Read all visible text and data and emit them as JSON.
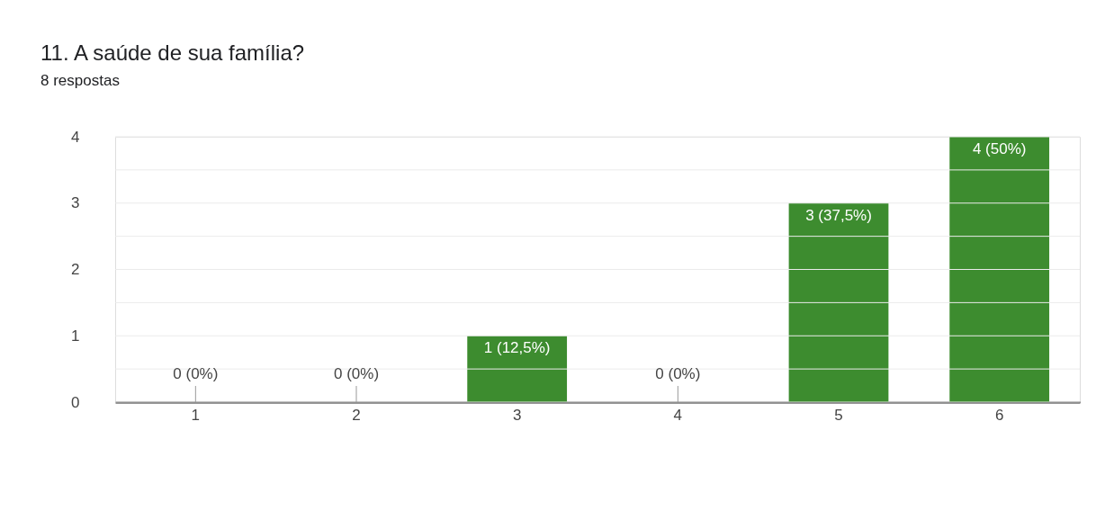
{
  "chart_data": {
    "type": "bar",
    "title": "11. A saúde de sua família?",
    "subtitle": "8 respostas",
    "categories": [
      "1",
      "2",
      "3",
      "4",
      "5",
      "6"
    ],
    "values": [
      0,
      0,
      1,
      0,
      3,
      4
    ],
    "value_labels": [
      "0 (0%)",
      "0 (0%)",
      "1 (12,5%)",
      "0 (0%)",
      "3 (37,5%)",
      "4 (50%)"
    ],
    "color": "#3d8c2f",
    "ylim": [
      0,
      4
    ],
    "yticks": [
      0,
      {
        "value": 0.5,
        "label": null
      },
      1,
      {
        "value": 1.5,
        "label": null
      },
      2,
      {
        "value": 2.5,
        "label": null
      },
      3,
      {
        "value": 3.5,
        "label": null
      },
      4
    ],
    "grid": "y"
  }
}
